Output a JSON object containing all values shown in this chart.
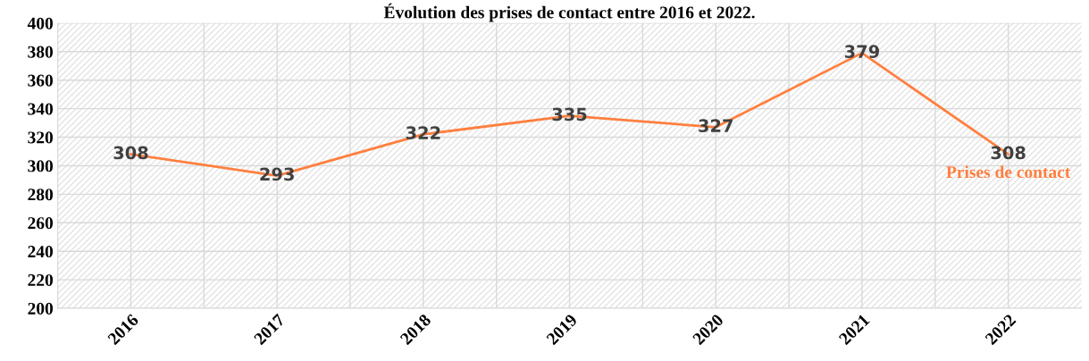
{
  "chart_data": {
    "type": "line",
    "title": "Évolution des prises de contact entre 2016 et 2022.",
    "categories": [
      "2016",
      "2017",
      "2018",
      "2019",
      "2020",
      "2021",
      "2022"
    ],
    "series": [
      {
        "name": "Prises de contact",
        "color": "#ff7f3f",
        "values": [
          308,
          293,
          322,
          335,
          327,
          379,
          308
        ]
      }
    ],
    "ylim": [
      200,
      400
    ],
    "yticks": [
      200,
      220,
      240,
      260,
      280,
      300,
      320,
      340,
      360,
      380,
      400
    ],
    "grid": true,
    "data_labels": true,
    "legend": false,
    "marker": "none"
  }
}
